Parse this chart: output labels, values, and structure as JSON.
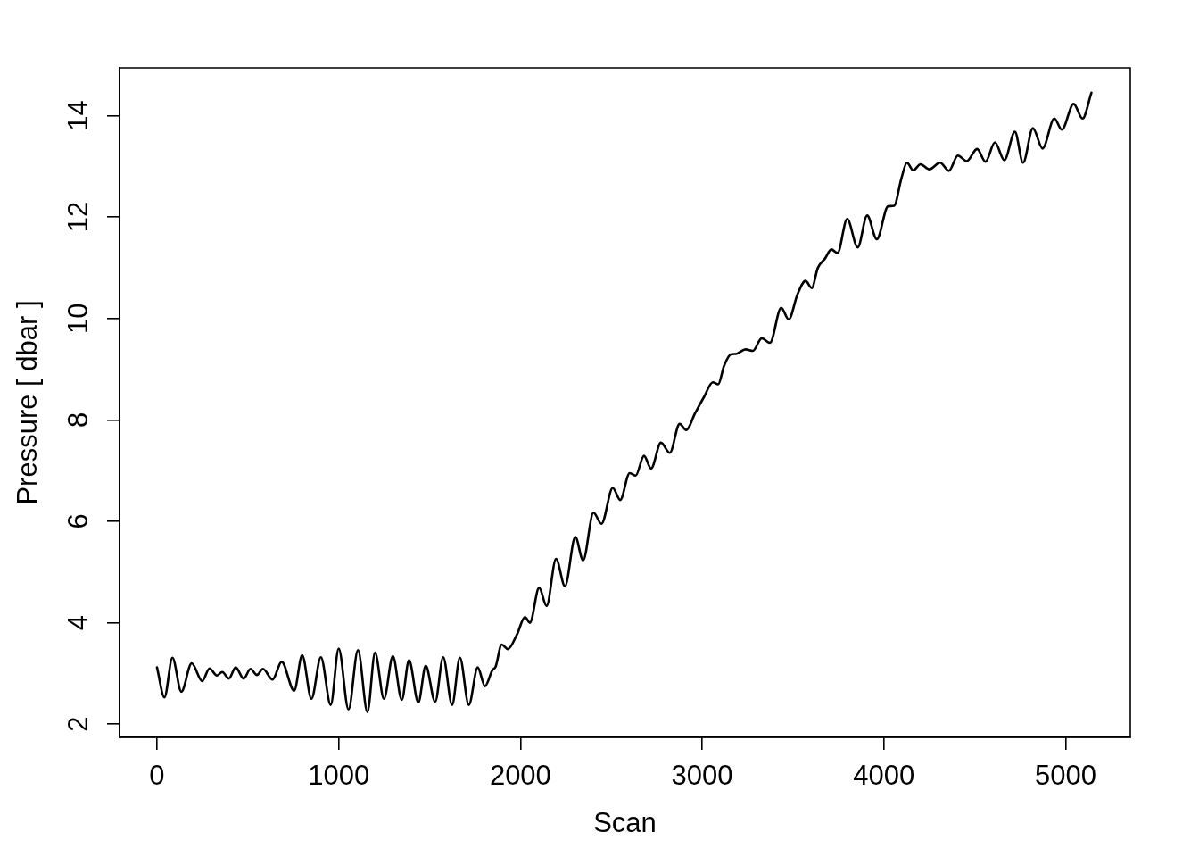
{
  "chart_data": {
    "type": "line",
    "xlabel": "Scan",
    "ylabel": "Pressure [ dbar ]",
    "x": [
      0,
      41,
      85,
      134,
      191,
      249,
      289,
      330,
      359,
      396,
      433,
      477,
      515,
      550,
      583,
      636,
      686,
      755,
      799,
      850,
      902,
      956,
      1000,
      1054,
      1106,
      1158,
      1200,
      1249,
      1298,
      1347,
      1387,
      1438,
      1479,
      1531,
      1575,
      1624,
      1667,
      1716,
      1765,
      1805,
      1846,
      1863,
      1897,
      1931,
      1980,
      2025,
      2052,
      2103,
      2144,
      2196,
      2245,
      2302,
      2345,
      2402,
      2446,
      2508,
      2549,
      2601,
      2634,
      2680,
      2719,
      2773,
      2822,
      2876,
      2912,
      2961,
      3010,
      3059,
      3088,
      3121,
      3157,
      3186,
      3239,
      3279,
      3328,
      3373,
      3435,
      3476,
      3525,
      3569,
      3603,
      3637,
      3676,
      3711,
      3745,
      3798,
      3856,
      3908,
      3961,
      4023,
      4056,
      4097,
      4127,
      4162,
      4201,
      4250,
      4309,
      4358,
      4407,
      4456,
      4513,
      4559,
      4611,
      4663,
      4721,
      4766,
      4820,
      4873,
      4938,
      4979,
      5044,
      5093,
      5142
    ],
    "series": [
      {
        "color": "#000000",
        "values": [
          3.12,
          2.53,
          3.31,
          2.64,
          3.2,
          2.85,
          3.1,
          2.96,
          3.03,
          2.9,
          3.12,
          2.9,
          3.09,
          2.97,
          3.09,
          2.88,
          3.23,
          2.66,
          3.36,
          2.5,
          3.32,
          2.38,
          3.49,
          2.29,
          3.46,
          2.24,
          3.41,
          2.5,
          3.34,
          2.48,
          3.26,
          2.43,
          3.15,
          2.44,
          3.32,
          2.38,
          3.31,
          2.38,
          3.12,
          2.75,
          3.07,
          3.13,
          3.57,
          3.48,
          3.76,
          4.11,
          4.0,
          4.69,
          4.33,
          5.26,
          4.72,
          5.69,
          5.23,
          6.17,
          5.95,
          6.66,
          6.42,
          6.95,
          6.9,
          7.29,
          7.04,
          7.55,
          7.35,
          7.92,
          7.8,
          8.13,
          8.45,
          8.74,
          8.7,
          9.07,
          9.29,
          9.3,
          9.39,
          9.36,
          9.61,
          9.52,
          10.21,
          9.98,
          10.48,
          10.74,
          10.6,
          11.0,
          11.18,
          11.36,
          11.29,
          11.96,
          11.4,
          12.03,
          11.56,
          12.21,
          12.22,
          12.77,
          13.07,
          12.92,
          13.04,
          12.94,
          13.07,
          12.91,
          13.21,
          13.1,
          13.34,
          13.09,
          13.47,
          13.12,
          13.68,
          13.07,
          13.75,
          13.35,
          13.94,
          13.72,
          14.23,
          13.94,
          14.45
        ]
      }
    ],
    "xlim": [
      -206,
      5356
    ],
    "ylim": [
      1.74,
      14.94
    ],
    "xticks": [
      0,
      1000,
      2000,
      3000,
      4000,
      5000
    ],
    "yticks": [
      2,
      4,
      6,
      8,
      10,
      12,
      14
    ]
  }
}
